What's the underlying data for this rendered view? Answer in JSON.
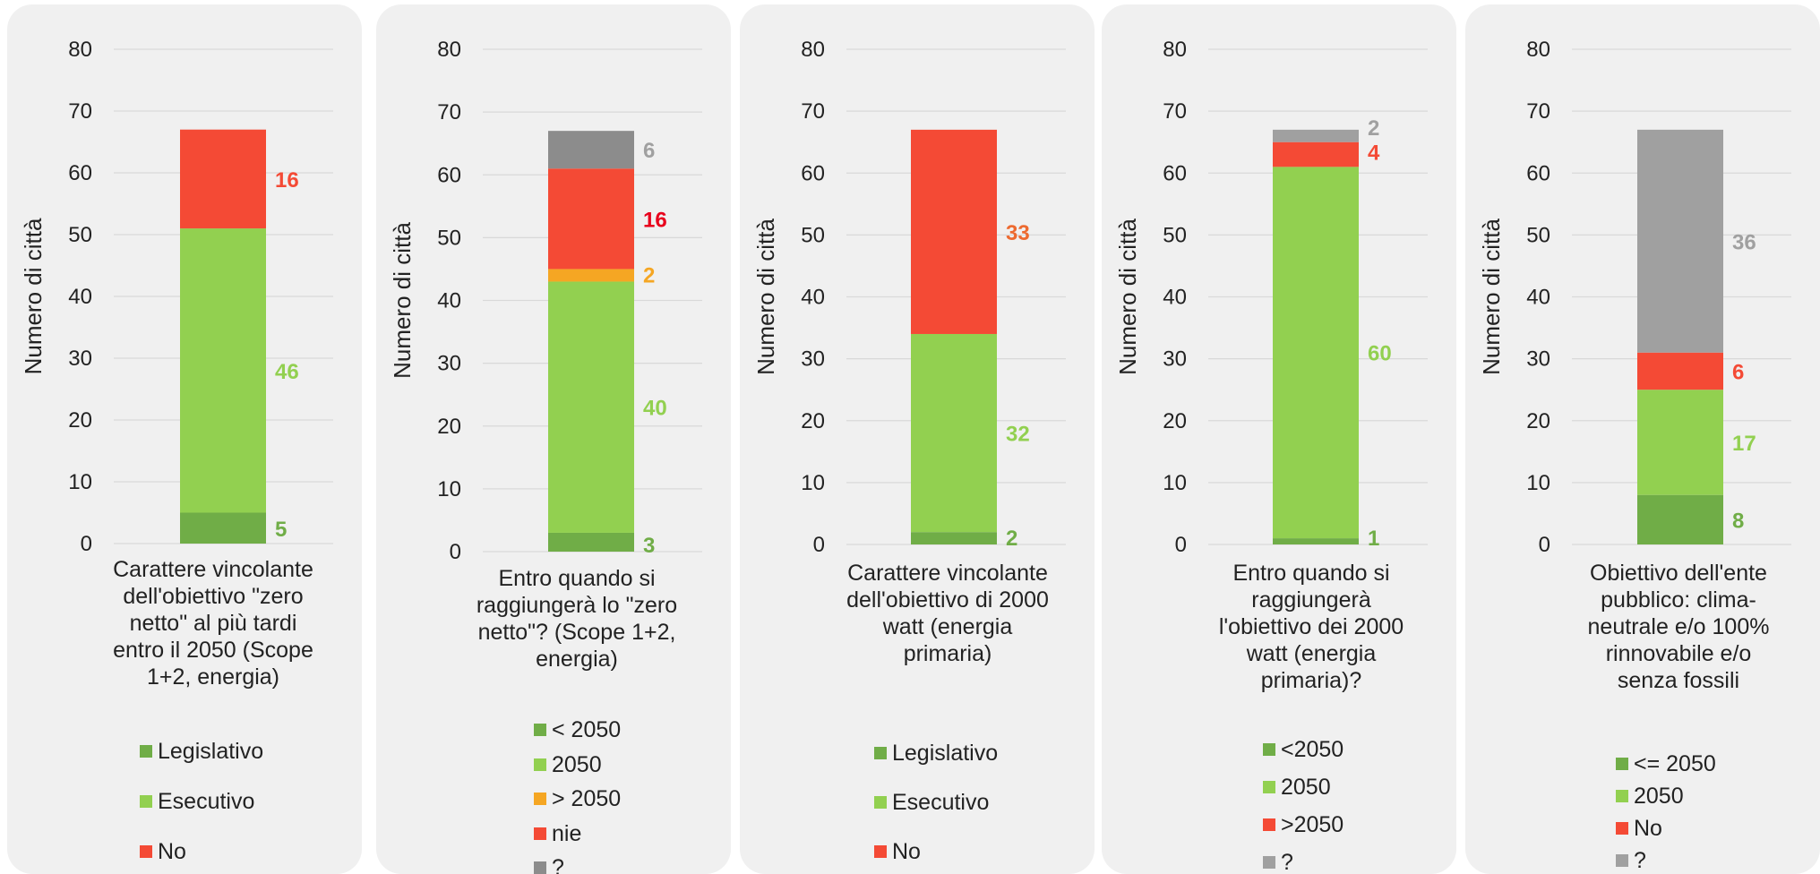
{
  "colors": {
    "legislativo": "#70ad47",
    "esecutivo": "#92d050",
    "no": "#f44a35",
    "orange": "#f5a623",
    "grey": "#a0a0a0",
    "darkgrey": "#8c8c8c"
  },
  "chart_data": [
    {
      "type": "bar",
      "stacked": true,
      "ylabel": "Numero di città",
      "ylim": [
        0,
        80
      ],
      "yticks": [
        0,
        10,
        20,
        30,
        40,
        50,
        60,
        70,
        80
      ],
      "categories": [
        "Carattere vincolante dell'obiettivo \"zero netto\" al più tardi entro il 2050 (Scope 1+2, energia)"
      ],
      "series": [
        {
          "name": "Legislativo",
          "values": [
            5
          ],
          "color": "#70ad47",
          "label_color": "#70ad47"
        },
        {
          "name": "Esecutivo",
          "values": [
            46
          ],
          "color": "#92d050",
          "label_color": "#92d050"
        },
        {
          "name": "No",
          "values": [
            16
          ],
          "color": "#f44a35",
          "label_color": "#f44a35"
        }
      ]
    },
    {
      "type": "bar",
      "stacked": true,
      "ylabel": "Numero di città",
      "ylim": [
        0,
        80
      ],
      "yticks": [
        0,
        10,
        20,
        30,
        40,
        50,
        60,
        70,
        80
      ],
      "categories": [
        "Entro quando si raggiungerà lo \"zero netto\"? (Scope 1+2, energia)"
      ],
      "series": [
        {
          "name": "< 2050",
          "values": [
            3
          ],
          "color": "#70ad47",
          "label_color": "#70ad47"
        },
        {
          "name": "2050",
          "values": [
            40
          ],
          "color": "#92d050",
          "label_color": "#92d050"
        },
        {
          "name": "> 2050",
          "values": [
            2
          ],
          "color": "#f5a623",
          "label_color": "#f5a623"
        },
        {
          "name": "nie",
          "values": [
            16
          ],
          "color": "#f44a35",
          "label_color": "#e8001c"
        },
        {
          "name": "?",
          "values": [
            6
          ],
          "color": "#8c8c8c",
          "label_color": "#a0a0a0"
        }
      ]
    },
    {
      "type": "bar",
      "stacked": true,
      "ylabel": "Numero di città",
      "ylim": [
        0,
        80
      ],
      "yticks": [
        0,
        10,
        20,
        30,
        40,
        50,
        60,
        70,
        80
      ],
      "categories": [
        "Carattere vincolante dell'obiettivo di 2000 watt (energia primaria)"
      ],
      "series": [
        {
          "name": "Legislativo",
          "values": [
            2
          ],
          "color": "#70ad47",
          "label_color": "#70ad47"
        },
        {
          "name": "Esecutivo",
          "values": [
            32
          ],
          "color": "#92d050",
          "label_color": "#92d050"
        },
        {
          "name": "No",
          "values": [
            33
          ],
          "color": "#f44a35",
          "label_color": "#ed6a30"
        }
      ]
    },
    {
      "type": "bar",
      "stacked": true,
      "ylabel": "Numero di città",
      "ylim": [
        0,
        80
      ],
      "yticks": [
        0,
        10,
        20,
        30,
        40,
        50,
        60,
        70,
        80
      ],
      "categories": [
        "Entro quando si raggiungerà l'obiettivo dei 2000 watt (energia primaria)?"
      ],
      "series": [
        {
          "name": "<2050",
          "values": [
            1
          ],
          "color": "#70ad47",
          "label_color": "#70ad47"
        },
        {
          "name": "2050",
          "values": [
            60
          ],
          "color": "#92d050",
          "label_color": "#92d050"
        },
        {
          "name": ">2050",
          "values": [
            4
          ],
          "color": "#f44a35",
          "label_color": "#f44a35"
        },
        {
          "name": "?",
          "values": [
            2
          ],
          "color": "#a0a0a0",
          "label_color": "#a0a0a0"
        }
      ]
    },
    {
      "type": "bar",
      "stacked": true,
      "ylabel": "Numero di città",
      "ylim": [
        0,
        80
      ],
      "yticks": [
        0,
        10,
        20,
        30,
        40,
        50,
        60,
        70,
        80
      ],
      "categories": [
        "Obiettivo dell'ente pubblico: clima-neutrale e/o 100% rinnovabile e/o senza fossili"
      ],
      "series": [
        {
          "name": "<= 2050",
          "values": [
            8
          ],
          "color": "#70ad47",
          "label_color": "#70ad47"
        },
        {
          "name": "2050",
          "values": [
            17
          ],
          "color": "#92d050",
          "label_color": "#92d050"
        },
        {
          "name": "No",
          "values": [
            6
          ],
          "color": "#f44a35",
          "label_color": "#f44a35"
        },
        {
          "name": "?",
          "values": [
            36
          ],
          "color": "#a0a0a0",
          "label_color": "#a0a0a0"
        }
      ]
    }
  ],
  "xlabels": [
    "Carattere vincolante dell'obiettivo \"zero netto\" al più tardi entro il 2050 (Scope 1+2, energia)",
    "Entro quando si raggiungerà lo \"zero netto\"? (Scope 1+2, energia)",
    "Carattere vincolante dell'obiettivo di 2000 watt (energia primaria)",
    "Entro quando si raggiungerà l'obiettivo dei 2000 watt (energia primaria)?",
    "Obiettivo dell'ente pubblico: clima-neutrale e/o 100% rinnovabile e/o senza fossili"
  ]
}
